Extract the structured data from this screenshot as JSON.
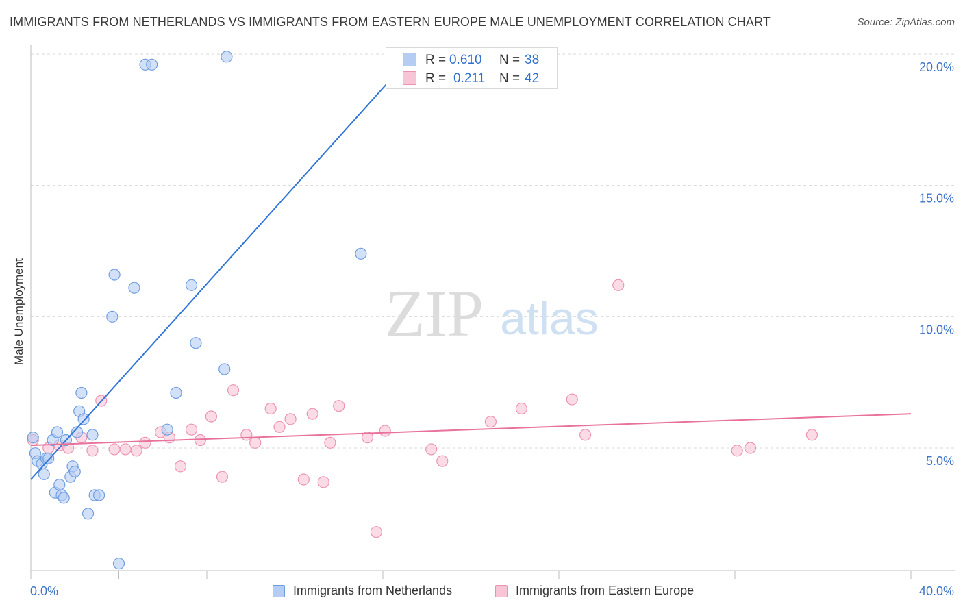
{
  "header": {
    "title": "IMMIGRANTS FROM NETHERLANDS VS IMMIGRANTS FROM EASTERN EUROPE MALE UNEMPLOYMENT CORRELATION CHART",
    "source": "Source: ZipAtlas.com"
  },
  "watermark": {
    "zip": "ZIP",
    "atlas": "atlas"
  },
  "stats_legend": {
    "rows": [
      {
        "r_label": "R =",
        "r_value": "0.610",
        "n_label": "N =",
        "n_value": "38"
      },
      {
        "r_label": "R =",
        "r_value": "0.211",
        "n_label": "N =",
        "n_value": "42"
      }
    ]
  },
  "colors": {
    "blue_fill": "#b5cdf3",
    "blue_stroke": "#6f9de0",
    "blue_line": "#2f74d6",
    "pink_fill": "#f8c5d6",
    "pink_stroke": "#ec93b1",
    "pink_line": "#e8729b",
    "axis_text": "#3d73c9",
    "grid": "#d9d9d9"
  },
  "chart_data": {
    "type": "scatter",
    "title": "IMMIGRANTS FROM NETHERLANDS VS IMMIGRANTS FROM EASTERN EUROPE MALE UNEMPLOYMENT CORRELATION CHART",
    "xlabel": "",
    "ylabel": "Male Unemployment",
    "xlim": [
      0,
      40
    ],
    "ylim": [
      0,
      20.5
    ],
    "x_tick_labels": [
      "0.0%",
      "40.0%"
    ],
    "y_ticks": [
      5,
      10,
      15,
      20
    ],
    "y_tick_labels": [
      "5.0%",
      "10.0%",
      "15.0%",
      "20.0%"
    ],
    "grid": true,
    "legend_position": "bottom",
    "series": [
      {
        "name": "Immigrants from Netherlands",
        "color": "#6f9de0",
        "trend": {
          "x": [
            0,
            17.5
          ],
          "y": [
            3.8,
            20.1
          ]
        },
        "points": [
          [
            0.1,
            5.4
          ],
          [
            0.2,
            4.8
          ],
          [
            0.3,
            4.5
          ],
          [
            0.5,
            4.4
          ],
          [
            0.6,
            4.0
          ],
          [
            0.7,
            4.6
          ],
          [
            0.8,
            4.6
          ],
          [
            1.0,
            5.3
          ],
          [
            1.1,
            3.3
          ],
          [
            1.2,
            5.6
          ],
          [
            1.3,
            3.6
          ],
          [
            1.4,
            3.2
          ],
          [
            1.5,
            3.1
          ],
          [
            1.6,
            5.3
          ],
          [
            1.8,
            3.9
          ],
          [
            1.9,
            4.3
          ],
          [
            2.0,
            4.1
          ],
          [
            2.1,
            5.6
          ],
          [
            2.2,
            6.4
          ],
          [
            2.3,
            7.1
          ],
          [
            2.4,
            6.1
          ],
          [
            2.6,
            2.5
          ],
          [
            2.8,
            5.5
          ],
          [
            2.9,
            3.2
          ],
          [
            3.1,
            3.2
          ],
          [
            3.7,
            10.0
          ],
          [
            3.8,
            11.6
          ],
          [
            4.0,
            0.6
          ],
          [
            4.7,
            11.1
          ],
          [
            5.2,
            19.6
          ],
          [
            5.5,
            19.6
          ],
          [
            6.2,
            5.7
          ],
          [
            6.6,
            7.1
          ],
          [
            7.3,
            11.2
          ],
          [
            7.5,
            9.0
          ],
          [
            8.8,
            8.0
          ],
          [
            8.9,
            19.9
          ],
          [
            15.0,
            12.4
          ]
        ]
      },
      {
        "name": "Immigrants from Eastern Europe",
        "color": "#ec93b1",
        "trend": {
          "x": [
            0,
            40
          ],
          "y": [
            5.1,
            6.3
          ]
        },
        "points": [
          [
            0.1,
            5.3
          ],
          [
            0.8,
            5.0
          ],
          [
            1.3,
            5.1
          ],
          [
            1.7,
            5.0
          ],
          [
            2.3,
            5.4
          ],
          [
            2.8,
            4.9
          ],
          [
            3.2,
            6.8
          ],
          [
            3.8,
            4.95
          ],
          [
            4.3,
            4.95
          ],
          [
            4.8,
            4.9
          ],
          [
            5.2,
            5.2
          ],
          [
            5.9,
            5.6
          ],
          [
            6.3,
            5.4
          ],
          [
            6.8,
            4.3
          ],
          [
            7.3,
            5.7
          ],
          [
            7.7,
            5.3
          ],
          [
            8.2,
            6.2
          ],
          [
            8.7,
            3.9
          ],
          [
            9.2,
            7.2
          ],
          [
            9.8,
            5.5
          ],
          [
            10.2,
            5.2
          ],
          [
            10.9,
            6.5
          ],
          [
            11.3,
            5.8
          ],
          [
            11.8,
            6.1
          ],
          [
            12.4,
            3.8
          ],
          [
            12.8,
            6.3
          ],
          [
            13.3,
            3.7
          ],
          [
            13.6,
            5.2
          ],
          [
            14.0,
            6.6
          ],
          [
            15.3,
            5.4
          ],
          [
            15.7,
            1.8
          ],
          [
            16.1,
            5.65
          ],
          [
            18.2,
            4.95
          ],
          [
            18.7,
            4.5
          ],
          [
            20.9,
            6.0
          ],
          [
            22.3,
            6.5
          ],
          [
            24.6,
            6.85
          ],
          [
            25.2,
            5.5
          ],
          [
            26.7,
            11.2
          ],
          [
            32.1,
            4.9
          ],
          [
            32.7,
            5.0
          ],
          [
            35.5,
            5.5
          ]
        ]
      }
    ]
  }
}
